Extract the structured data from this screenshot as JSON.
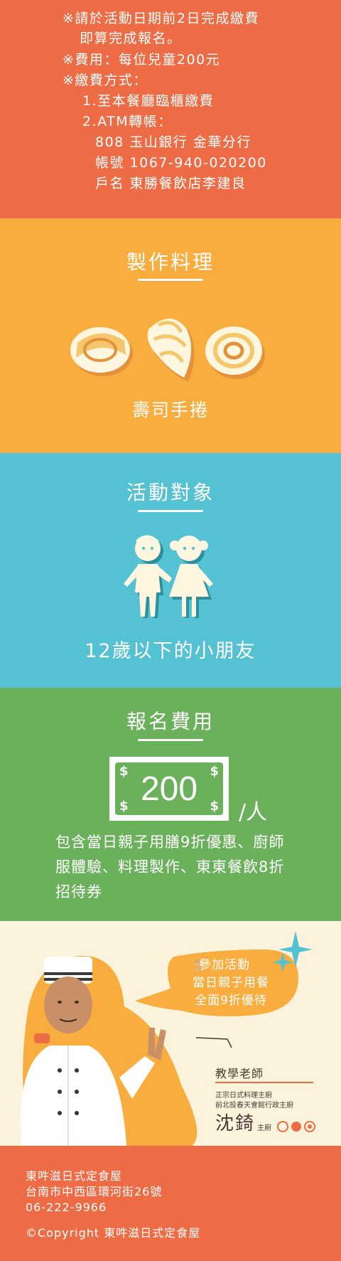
{
  "payment_notes": {
    "lines": [
      "※請於活動日期前2日完成繳費",
      "即算完成報名。",
      "※費用：每位兒童200元",
      "※繳費方式：",
      "1.至本餐廳臨櫃繳費",
      "2.ATM轉帳：",
      "808  玉山銀行  金華分行",
      "帳號  1067-940-020200",
      "戶名  東勝餐飲店李建良"
    ]
  },
  "cooking": {
    "title": "製作料理",
    "dish": "壽司手捲"
  },
  "target": {
    "title": "活動對象",
    "audience": "12歲以下的小朋友"
  },
  "fee": {
    "title": "報名費用",
    "amount": "200",
    "unit": "/人",
    "description": "包含當日親子用膳9折優惠、廚師服體驗、料理製作、東東餐飲8折招待券"
  },
  "teacher": {
    "promo_line1": "參加活動",
    "promo_line2": "當日親子用餐",
    "promo_line3": "全面9折優待",
    "label": "教學老師",
    "credential1": "正宗日式料理主廚",
    "credential2": "前北投春天會館行政主廚",
    "name": "沈錡",
    "role": "主廚"
  },
  "footer": {
    "name": "東吽滋日式定食屋",
    "address": "台南市中西區環河街26號",
    "phone": "06-222-9966",
    "copyright": "©Copyright 東吽滋日式定食屋"
  },
  "colors": {
    "orange_red": "#ee6c45",
    "orange": "#f9ad3f",
    "teal": "#55c2d3",
    "green": "#6bb15b",
    "cream": "#fcf3dc"
  },
  "icons": [
    "sushi-roll-icon",
    "nigiri-icon",
    "maki-icon",
    "children-icon",
    "dollar-bill-icon",
    "fork-knife-icon",
    "sparkle-icon"
  ]
}
